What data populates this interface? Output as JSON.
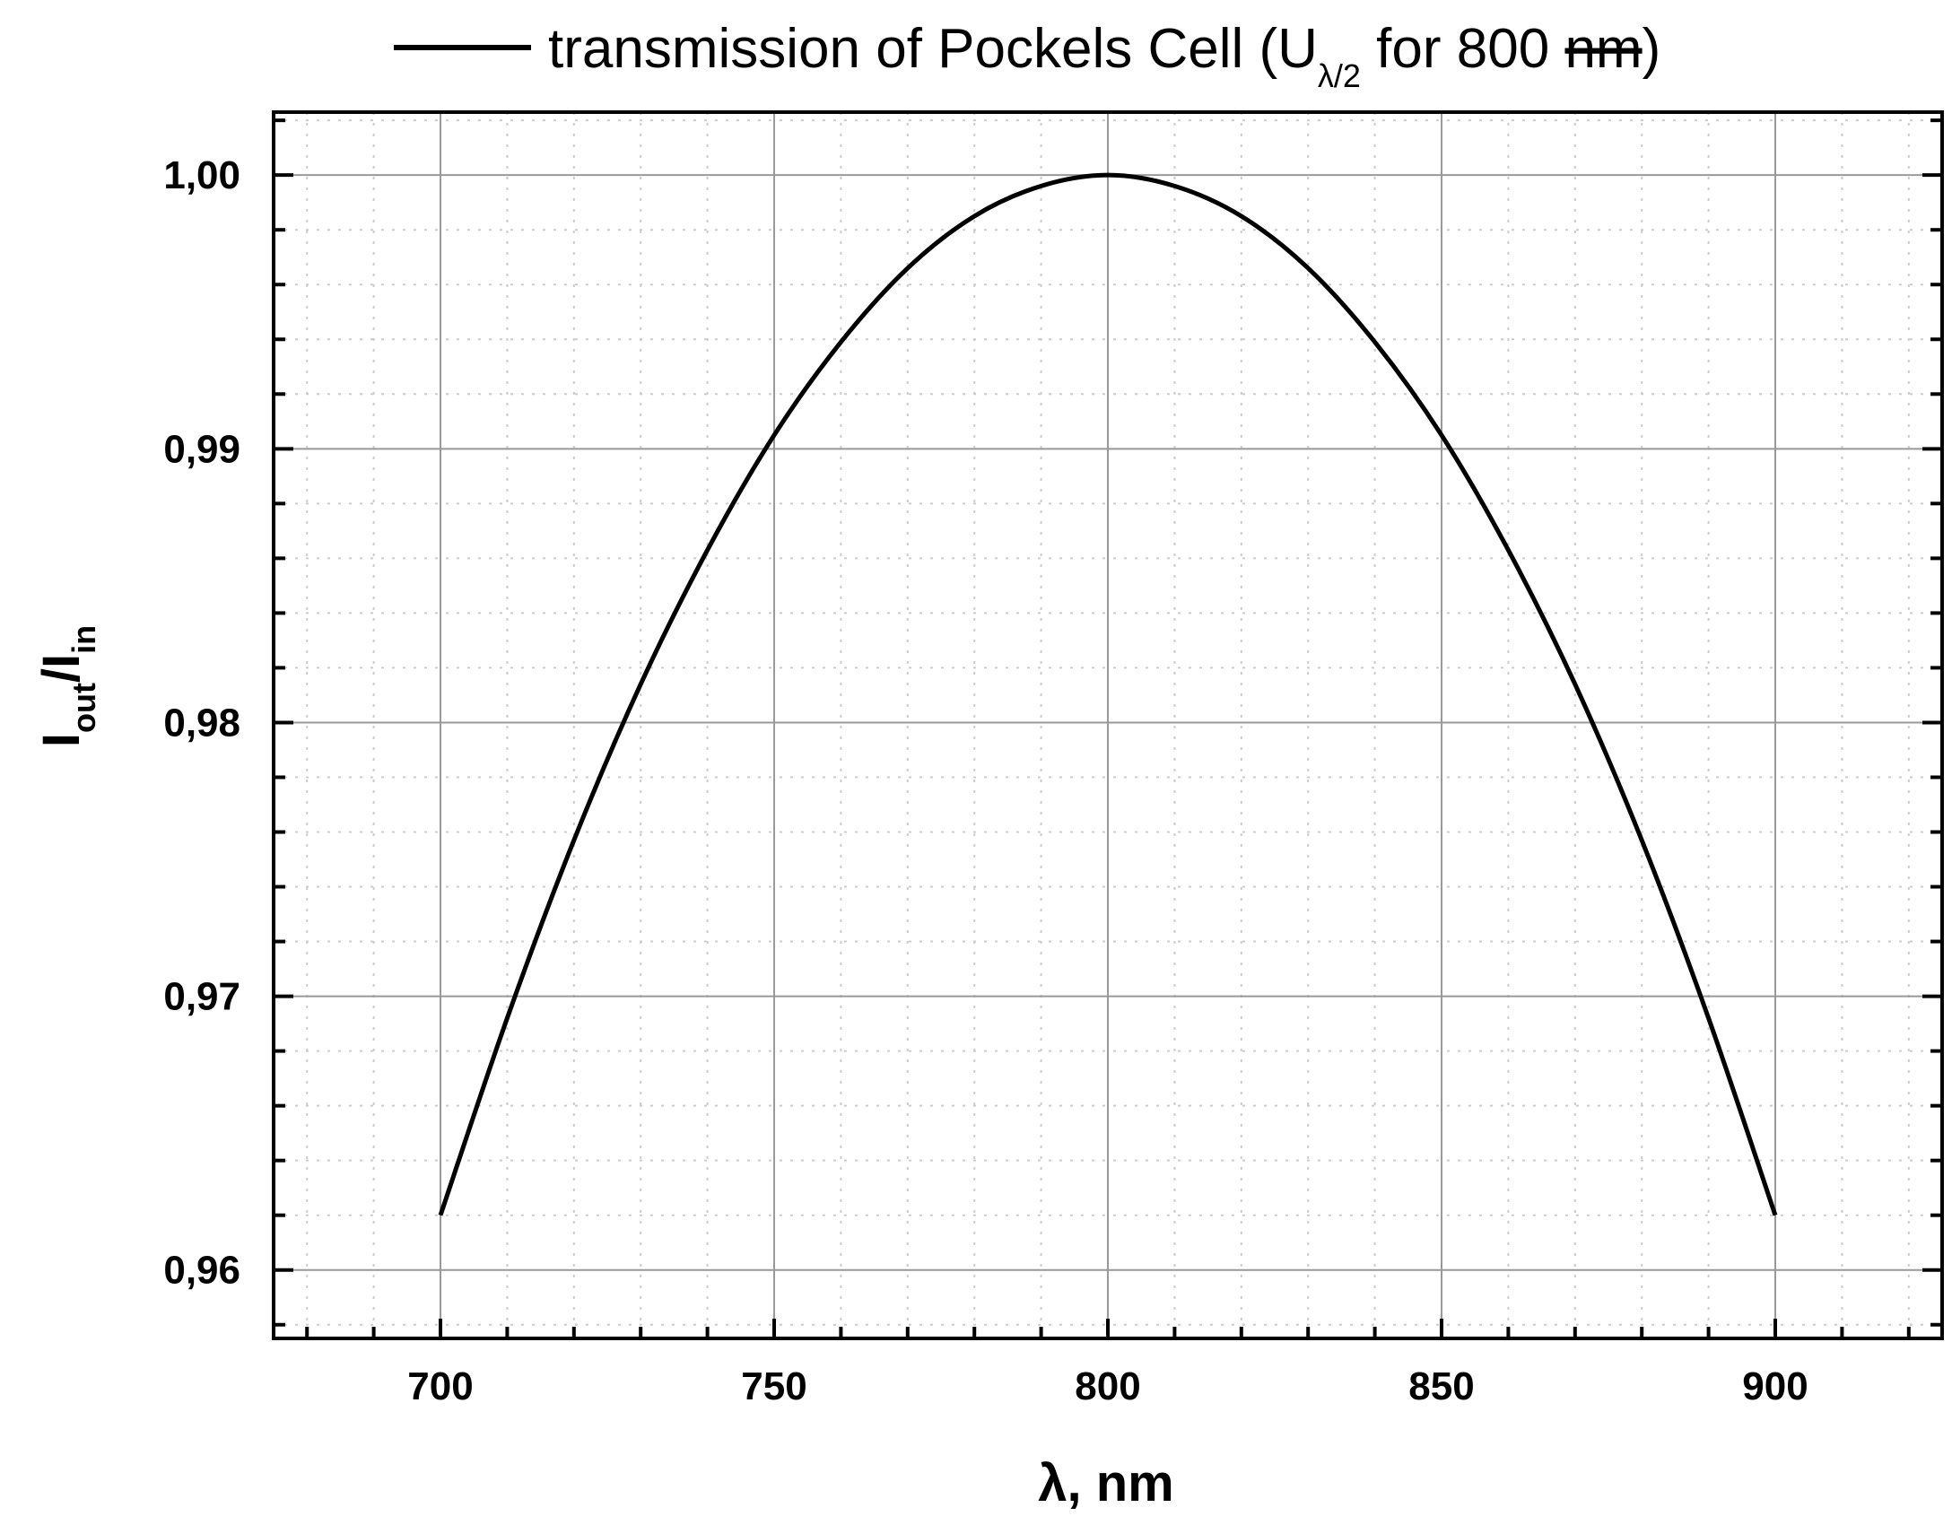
{
  "chart_data": {
    "type": "line",
    "title": "",
    "legend": {
      "placement": "top",
      "entries": [
        {
          "prefix": "transmission of Pockels Cell (U",
          "subscript": "λ/2",
          "middle": " for 800 ",
          "struck": "nm",
          "suffix": ")"
        }
      ]
    },
    "xlabel": "λ, nm",
    "ylabel": {
      "main": "I",
      "sub1": "out",
      "sep": "/I",
      "sub2": "in"
    },
    "xlim": [
      675,
      925
    ],
    "ylim": [
      0.9575,
      1.0023
    ],
    "xticks": [
      700,
      750,
      800,
      850,
      900
    ],
    "xtick_labels": [
      "700",
      "750",
      "800",
      "850",
      "900"
    ],
    "yticks": [
      0.96,
      0.97,
      0.98,
      0.99,
      1.0
    ],
    "ytick_labels": [
      "0,96",
      "0,97",
      "0,98",
      "0,99",
      "1,00"
    ],
    "x_minor_step": 10,
    "y_minor_step": 0.002,
    "grid": true,
    "series": [
      {
        "name": "transmission of Pockels Cell",
        "color": "#000000",
        "x": [
          700,
          710,
          720,
          730,
          740,
          750,
          760,
          770,
          780,
          790,
          800,
          810,
          820,
          830,
          840,
          850,
          860,
          870,
          880,
          890,
          900
        ],
        "y": [
          0.962,
          0.9692,
          0.9757,
          0.9814,
          0.9863,
          0.9905,
          0.9939,
          0.9966,
          0.9985,
          0.9996,
          1.0,
          0.9996,
          0.9985,
          0.9966,
          0.9939,
          0.9905,
          0.9863,
          0.9814,
          0.9757,
          0.9692,
          0.962
        ]
      }
    ]
  }
}
